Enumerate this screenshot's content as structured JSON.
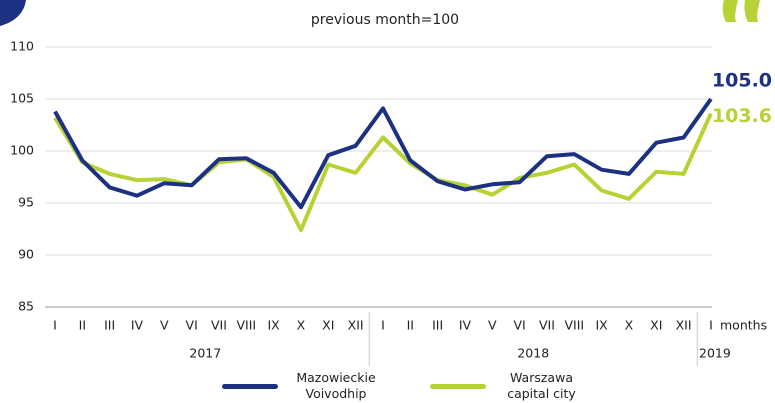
{
  "chart_data": {
    "type": "line",
    "subtitle": "previous month=100",
    "x_label": "months",
    "categories": [
      "I",
      "II",
      "III",
      "IV",
      "V",
      "VI",
      "VII",
      "VIII",
      "IX",
      "X",
      "XI",
      "XII",
      "I",
      "II",
      "III",
      "IV",
      "V",
      "VI",
      "VII",
      "VIII",
      "IX",
      "X",
      "XI",
      "XII",
      "I"
    ],
    "groups": [
      "2017",
      "2018",
      "2019"
    ],
    "series": [
      {
        "name": "Mazowieckie Voivodhip",
        "color": "#1c3181",
        "values": [
          103.8,
          99.1,
          96.5,
          95.7,
          96.9,
          96.7,
          99.2,
          99.3,
          97.9,
          94.6,
          99.6,
          100.5,
          104.1,
          99.1,
          97.1,
          96.3,
          96.8,
          97.0,
          99.5,
          99.7,
          98.2,
          97.8,
          100.8,
          101.3,
          105.0
        ],
        "value_labels": [
          null,
          null,
          null,
          null,
          null,
          null,
          null,
          null,
          null,
          null,
          null,
          null,
          null,
          null,
          null,
          null,
          null,
          null,
          null,
          null,
          null,
          null,
          null,
          null,
          "105.0"
        ]
      },
      {
        "name": "Warszawa capital city",
        "color": "#b5d334",
        "values": [
          103.2,
          98.9,
          97.8,
          97.2,
          97.3,
          96.7,
          98.9,
          99.2,
          97.5,
          92.4,
          98.7,
          97.9,
          101.3,
          98.8,
          97.2,
          96.7,
          95.8,
          97.4,
          97.9,
          98.7,
          96.2,
          95.4,
          98.0,
          97.8,
          103.6
        ],
        "value_labels": [
          null,
          null,
          null,
          null,
          null,
          null,
          null,
          null,
          null,
          null,
          null,
          null,
          null,
          null,
          null,
          null,
          null,
          null,
          null,
          null,
          null,
          null,
          null,
          null,
          "103.6"
        ]
      }
    ],
    "ylim": [
      85,
      110
    ],
    "yticks": [
      85,
      90,
      95,
      100,
      105,
      110
    ],
    "grid": true
  }
}
